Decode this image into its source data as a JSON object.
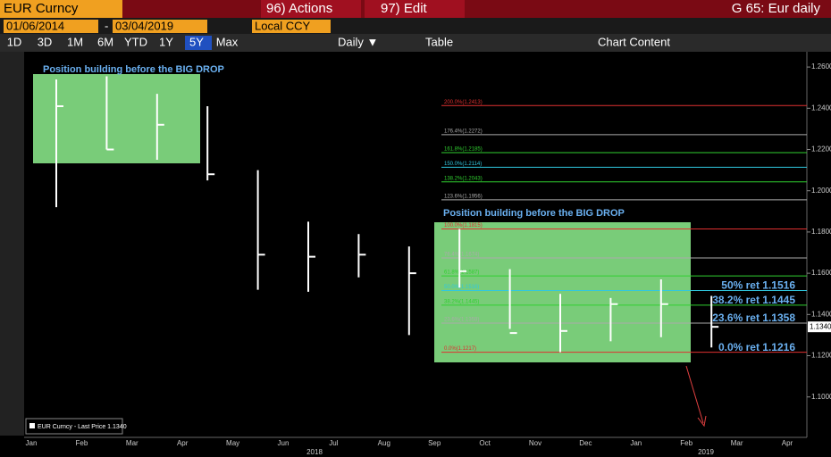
{
  "toolbar": {
    "ticker": "EUR Curncy",
    "start_date": "01/06/2014",
    "dash": "-",
    "end_date": "03/04/2019",
    "actions": "96) Actions",
    "edit": "97) Edit",
    "chart_name": "G 65: Eur daily",
    "currency": "Local CCY",
    "ranges": [
      "1D",
      "3D",
      "1M",
      "6M",
      "YTD",
      "1Y",
      "5Y",
      "Max"
    ],
    "frequency": "Daily ▼",
    "table": "Table",
    "chart_content": "Chart Content"
  },
  "chart_data": {
    "type": "hlc",
    "categories": [
      "Jan",
      "Feb",
      "Mar",
      "Apr",
      "May",
      "Jun",
      "Jul",
      "Aug",
      "Sep",
      "Oct",
      "Nov",
      "Dec",
      "Jan",
      "Feb",
      "Mar",
      "Apr"
    ],
    "years": [
      "2018",
      "2019"
    ],
    "series": [
      {
        "name": "EUR Curncy - Last Price 1.1340",
        "color": "#ffffff",
        "high": [
          1.254,
          1.2555,
          1.247,
          1.241,
          1.21,
          1.185,
          1.179,
          1.173,
          1.1815,
          1.162,
          1.15,
          1.148,
          1.157,
          1.149,
          null,
          null
        ],
        "low": [
          1.192,
          1.22,
          1.215,
          1.205,
          1.152,
          1.151,
          1.158,
          1.13,
          1.153,
          1.133,
          1.1217,
          1.127,
          1.129,
          1.124,
          null,
          null
        ],
        "values": [
          1.241,
          1.22,
          1.232,
          1.208,
          1.169,
          1.168,
          1.169,
          1.16,
          1.161,
          1.131,
          1.132,
          1.145,
          1.145,
          1.134,
          null,
          null
        ]
      }
    ],
    "last_price": {
      "value": 1.134,
      "label": "1.1340"
    },
    "ylim": [
      1.0804,
      1.2674
    ],
    "yticks": [
      {
        "value": 1.1,
        "label": "1.1000"
      },
      {
        "value": 1.12,
        "label": "1.1200"
      },
      {
        "value": 1.14,
        "label": "1.1400"
      },
      {
        "value": 1.16,
        "label": "1.1600"
      },
      {
        "value": 1.18,
        "label": "1.1800"
      },
      {
        "value": 1.2,
        "label": "1.2000"
      },
      {
        "value": 1.22,
        "label": "1.2200"
      },
      {
        "value": 1.24,
        "label": "1.2400"
      },
      {
        "value": 1.26,
        "label": "1.2600"
      }
    ],
    "fib_levels": [
      {
        "value": 1.2413,
        "label": "200.0%(1.2413)",
        "color": "#e03030"
      },
      {
        "value": 1.2272,
        "label": "176.4%(1.2272)",
        "color": "#aaaaaa"
      },
      {
        "value": 1.2185,
        "label": "161.8%(1.2185)",
        "color": "#30d030"
      },
      {
        "value": 1.2114,
        "label": "150.0%(1.2114)",
        "color": "#30c8e0"
      },
      {
        "value": 1.2043,
        "label": "138.2%(1.2043)",
        "color": "#30d030"
      },
      {
        "value": 1.1956,
        "label": "123.6%(1.1956)",
        "color": "#aaaaaa"
      },
      {
        "value": 1.1815,
        "label": "100.0%(1.1815)",
        "color": "#e03030"
      },
      {
        "value": 1.1674,
        "label": "76.4%(1.1674)",
        "color": "#aaaaaa"
      },
      {
        "value": 1.1587,
        "label": "61.8%(1.1587)",
        "color": "#30d030"
      },
      {
        "value": 1.1516,
        "label": "50.0%(1.1516)",
        "color": "#30c8e0"
      },
      {
        "value": 1.1445,
        "label": "38.2%(1.1445)",
        "color": "#30d030"
      },
      {
        "value": 1.1358,
        "label": "23.6%(1.1358)",
        "color": "#aaaaaa"
      },
      {
        "value": 1.1217,
        "label": "0.0%(1.1217)",
        "color": "#e03030"
      }
    ],
    "retracements": [
      {
        "value": 1.1516,
        "label": "50% ret 1.1516"
      },
      {
        "value": 1.1445,
        "label": "38.2% ret 1.1445"
      },
      {
        "value": 1.1358,
        "label": "23.6% ret 1.1358"
      },
      {
        "value": 1.1216,
        "label": "0.0% ret 1.1216"
      }
    ],
    "annotations": [
      "Position building before the BIG DROP",
      "Position building before the BIG DROP"
    ]
  }
}
